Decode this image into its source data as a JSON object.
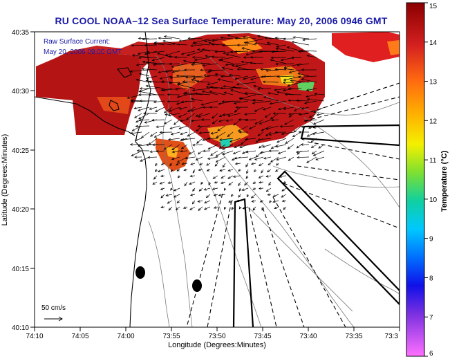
{
  "title": "RU COOL  NOAA–12  Sea Surface Temperature:  May 20, 2006 0946 GMT",
  "current_info": {
    "line1": "Raw Surface Current:",
    "line2": "May 20, 2006 09:00 GMT"
  },
  "scale_label": "50 cm/s",
  "axes": {
    "xlabel": "Longitude (Degrees:Minutes)",
    "ylabel": "Latitude (Degrees:Minutes)",
    "x_ticks": [
      "74:10",
      "74:05",
      "74:00",
      "73:55",
      "73:50",
      "73:45",
      "73:40",
      "73:35",
      "73:3"
    ],
    "y_ticks": [
      "40:35",
      "40:30",
      "40:25",
      "40:20",
      "40:15",
      "40:10"
    ]
  },
  "colorbar": {
    "label": "Temperature (°C)",
    "min": 6,
    "max": 15,
    "ticks": [
      "15",
      "14",
      "13",
      "12",
      "11",
      "10",
      "9",
      "8",
      "7",
      "6"
    ]
  },
  "colors": {
    "title": "#1a1aa8",
    "warm": "#b01616",
    "land": "#ffffff"
  }
}
